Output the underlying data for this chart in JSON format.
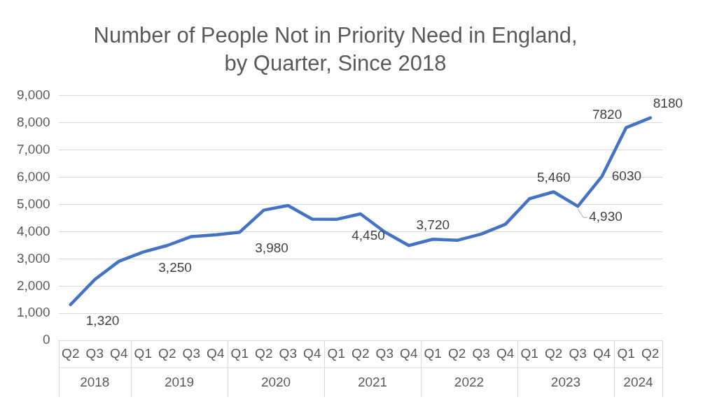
{
  "chart_data": {
    "type": "line",
    "title": "Number of People Not in Priority Need in England,\nby Quarter, Since 2018",
    "categories": [
      "Q2",
      "Q3",
      "Q4",
      "Q1",
      "Q2",
      "Q3",
      "Q4",
      "Q1",
      "Q2",
      "Q3",
      "Q4",
      "Q1",
      "Q2",
      "Q3",
      "Q4",
      "Q1",
      "Q2",
      "Q3",
      "Q4",
      "Q1",
      "Q2",
      "Q3",
      "Q4",
      "Q1",
      "Q2"
    ],
    "series": [
      {
        "color": "#4472c4",
        "values": [
          1320,
          2240,
          2910,
          3250,
          3490,
          3820,
          3880,
          3980,
          4790,
          4960,
          4460,
          4450,
          4650,
          3990,
          3490,
          3720,
          3680,
          3910,
          4270,
          5210,
          5460,
          4930,
          6030,
          7820,
          8180
        ],
        "value_labels": [
          "1,320",
          null,
          null,
          "3,250",
          null,
          null,
          null,
          "3,980",
          null,
          null,
          null,
          "4,450",
          null,
          null,
          null,
          "3,720",
          null,
          null,
          null,
          null,
          "5,460",
          "4,930",
          "6030",
          "7820",
          "8180"
        ]
      }
    ],
    "annotations": [
      "2018",
      "2019",
      "2020",
      "2021",
      "2022",
      "2023",
      "2024"
    ],
    "ylim": [
      0,
      9000
    ],
    "yticks": [
      0,
      {
        "value": 1000,
        "label": "1,000"
      },
      {
        "value": 2000,
        "label": "2,000"
      },
      {
        "value": 3000,
        "label": "3,000"
      },
      {
        "value": 4000,
        "label": "4,000"
      },
      {
        "value": 5000,
        "label": "5,000"
      },
      {
        "value": 6000,
        "label": "6,000"
      },
      {
        "value": 7000,
        "label": "7,000"
      },
      {
        "value": 8000,
        "label": "8,000"
      },
      {
        "value": 9000,
        "label": "9,000"
      }
    ],
    "grid": "y",
    "legend": false,
    "marker": "none",
    "line_style": "solid"
  }
}
